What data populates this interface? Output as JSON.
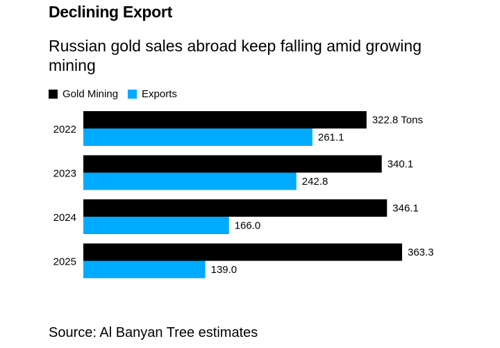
{
  "chart_data": {
    "type": "bar",
    "orientation": "horizontal",
    "title": "Declining Export",
    "subtitle": "Russian gold sales abroad keep falling amid growing mining",
    "categories": [
      "2022",
      "2023",
      "2024",
      "2025"
    ],
    "unit_label": "Tons",
    "series": [
      {
        "name": "Gold Mining",
        "color": "#000000",
        "values": [
          322.8,
          340.1,
          346.1,
          363.3
        ],
        "labels": [
          "322.8 Tons",
          "340.1",
          "346.1",
          "363.3"
        ]
      },
      {
        "name": "Exports",
        "color": "#00aaff",
        "values": [
          261.1,
          242.8,
          166.0,
          139.0
        ],
        "labels": [
          "261.1",
          "242.8",
          "166.0",
          "139.0"
        ]
      }
    ],
    "xlim": [
      0,
      363.3
    ],
    "source": "Source: Al Banyan Tree estimates"
  }
}
